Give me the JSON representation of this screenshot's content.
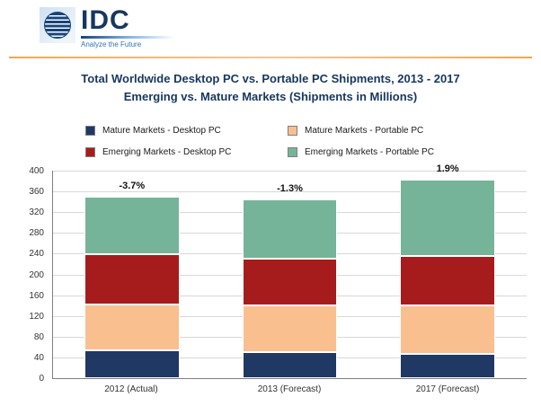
{
  "logo": {
    "text": "IDC",
    "tagline": "Analyze the Future"
  },
  "title": {
    "line1": "Total Worldwide Desktop PC vs. Portable PC Shipments, 2013 - 2017",
    "line2": "Emerging vs. Mature Markets (Shipments in Millions)"
  },
  "chart_data": {
    "type": "bar",
    "stacked": true,
    "categories": [
      "2012 (Actual)",
      "2013 (Forecast)",
      "2017 (Forecast)"
    ],
    "series": [
      {
        "name": "Mature Markets - Desktop PC",
        "color": "#1f3864",
        "values": [
          54,
          50,
          46
        ]
      },
      {
        "name": "Mature Markets - Portable PC",
        "color": "#fabf8f",
        "values": [
          88,
          90,
          95
        ]
      },
      {
        "name": "Emerging Markets - Desktop PC",
        "color": "#a61c1c",
        "values": [
          97,
          90,
          94
        ]
      },
      {
        "name": "Emerging Markets - Portable PC",
        "color": "#76b49a",
        "values": [
          111,
          115,
          148
        ]
      }
    ],
    "bar_labels": [
      "-3.7%",
      "-1.3%",
      "1.9%"
    ],
    "ylim": [
      0,
      400
    ],
    "ytick_step": 40,
    "grid": true,
    "legend_position": "top"
  }
}
